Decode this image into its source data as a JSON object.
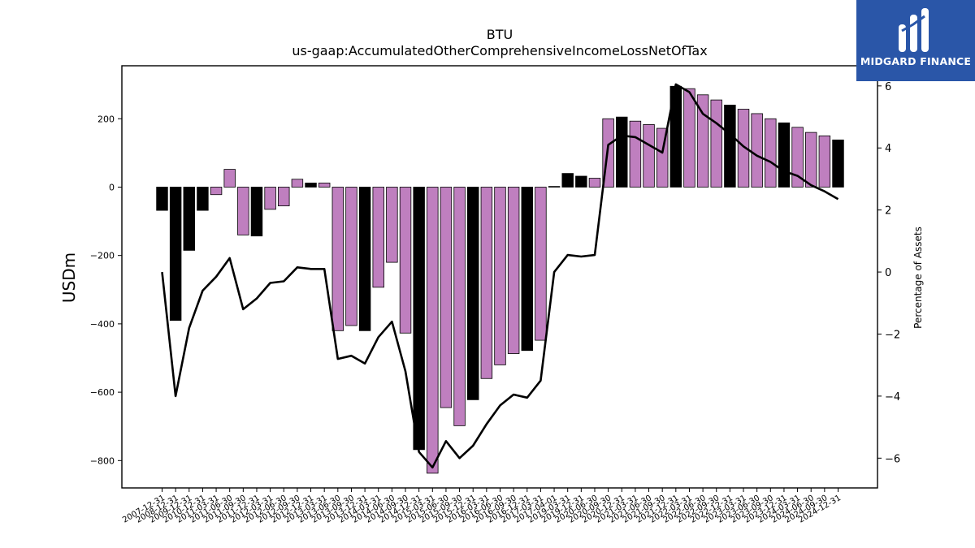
{
  "brand": {
    "name": "MIDGARD FINANCE",
    "logo_icon": "midgard-logo-icon",
    "background_color": "#2a56a8"
  },
  "chart_data": {
    "type": "bar",
    "title": "BTU",
    "subtitle": "us-gaap:AccumulatedOtherComprehensiveIncomeLossNetOfTax",
    "ylabel": "USDm",
    "y2label": "Percentage of Assets",
    "ylim": [
      -880,
      355
    ],
    "y2lim": [
      -6.96,
      6.65
    ],
    "yticks": [
      -800,
      -600,
      -400,
      -200,
      0,
      200
    ],
    "y2ticks": [
      -6,
      -4,
      -2,
      0,
      2,
      4,
      6
    ],
    "colors": {
      "annual": "#000000",
      "quarterly": "#bf7fbf",
      "line": "#000000"
    },
    "legend": "none",
    "grid": false,
    "categories": [
      "2007-12-31",
      "2008-12-31",
      "2009-12-31",
      "2010-12-31",
      "2011-03-31",
      "2011-06-30",
      "2011-09-30",
      "2011-12-31",
      "2012-03-31",
      "2012-06-30",
      "2012-09-30",
      "2012-12-31",
      "2013-03-31",
      "2013-06-30",
      "2013-09-30",
      "2013-12-31",
      "2014-03-31",
      "2014-06-30",
      "2014-09-30",
      "2014-12-31",
      "2015-03-31",
      "2015-06-30",
      "2015-09-30",
      "2015-12-31",
      "2016-03-31",
      "2016-06-30",
      "2016-09-30",
      "2016-12-31",
      "2017-03-31",
      "2017-04-01",
      "2019-03-31",
      "2019-12-31",
      "2020-06-30",
      "2020-09-30",
      "2020-12-31",
      "2021-03-31",
      "2021-06-30",
      "2021-09-30",
      "2021-12-31",
      "2022-03-31",
      "2022-06-30",
      "2022-09-30",
      "2022-12-31",
      "2023-03-31",
      "2023-06-30",
      "2023-09-30",
      "2023-12-31",
      "2024-03-31",
      "2024-06-30",
      "2024-09-30",
      "2024-12-31"
    ],
    "values": [
      -68,
      -390,
      -185,
      -68,
      -22,
      52,
      -140,
      -143,
      -65,
      -55,
      23,
      12,
      12,
      -420,
      -405,
      -420,
      -293,
      -220,
      -427,
      -768,
      -837,
      -645,
      -698,
      -622,
      -560,
      -520,
      -487,
      -478,
      -448,
      2,
      40,
      32,
      26,
      200,
      205,
      193,
      183,
      172,
      295,
      288,
      270,
      255,
      240,
      228,
      215,
      200,
      188,
      175,
      160,
      150,
      138
    ],
    "period_type": [
      "annual",
      "annual",
      "annual",
      "annual",
      "quarterly",
      "quarterly",
      "quarterly",
      "annual",
      "quarterly",
      "quarterly",
      "quarterly",
      "annual",
      "quarterly",
      "quarterly",
      "quarterly",
      "annual",
      "quarterly",
      "quarterly",
      "quarterly",
      "annual",
      "quarterly",
      "quarterly",
      "quarterly",
      "annual",
      "quarterly",
      "quarterly",
      "quarterly",
      "annual",
      "quarterly",
      "annual",
      "annual",
      "annual",
      "quarterly",
      "quarterly",
      "annual",
      "quarterly",
      "quarterly",
      "quarterly",
      "annual",
      "quarterly",
      "quarterly",
      "quarterly",
      "annual",
      "quarterly",
      "quarterly",
      "quarterly",
      "annual",
      "quarterly",
      "quarterly",
      "quarterly",
      "annual"
    ],
    "pct_of_assets": [
      0.0,
      -4.0,
      -1.8,
      -0.6,
      -0.15,
      0.45,
      -1.2,
      -0.85,
      -0.35,
      -0.3,
      0.15,
      0.1,
      0.1,
      -2.8,
      -2.7,
      -2.95,
      -2.1,
      -1.6,
      -3.2,
      -5.8,
      -6.3,
      -5.45,
      -6.0,
      -5.6,
      -4.9,
      -4.3,
      -3.95,
      -4.05,
      -3.5,
      0.0,
      0.55,
      0.5,
      0.55,
      4.1,
      4.4,
      4.35,
      4.1,
      3.85,
      6.05,
      5.8,
      5.1,
      4.8,
      4.45,
      4.05,
      3.75,
      3.55,
      3.25,
      3.1,
      2.8,
      2.6,
      2.35
    ]
  }
}
